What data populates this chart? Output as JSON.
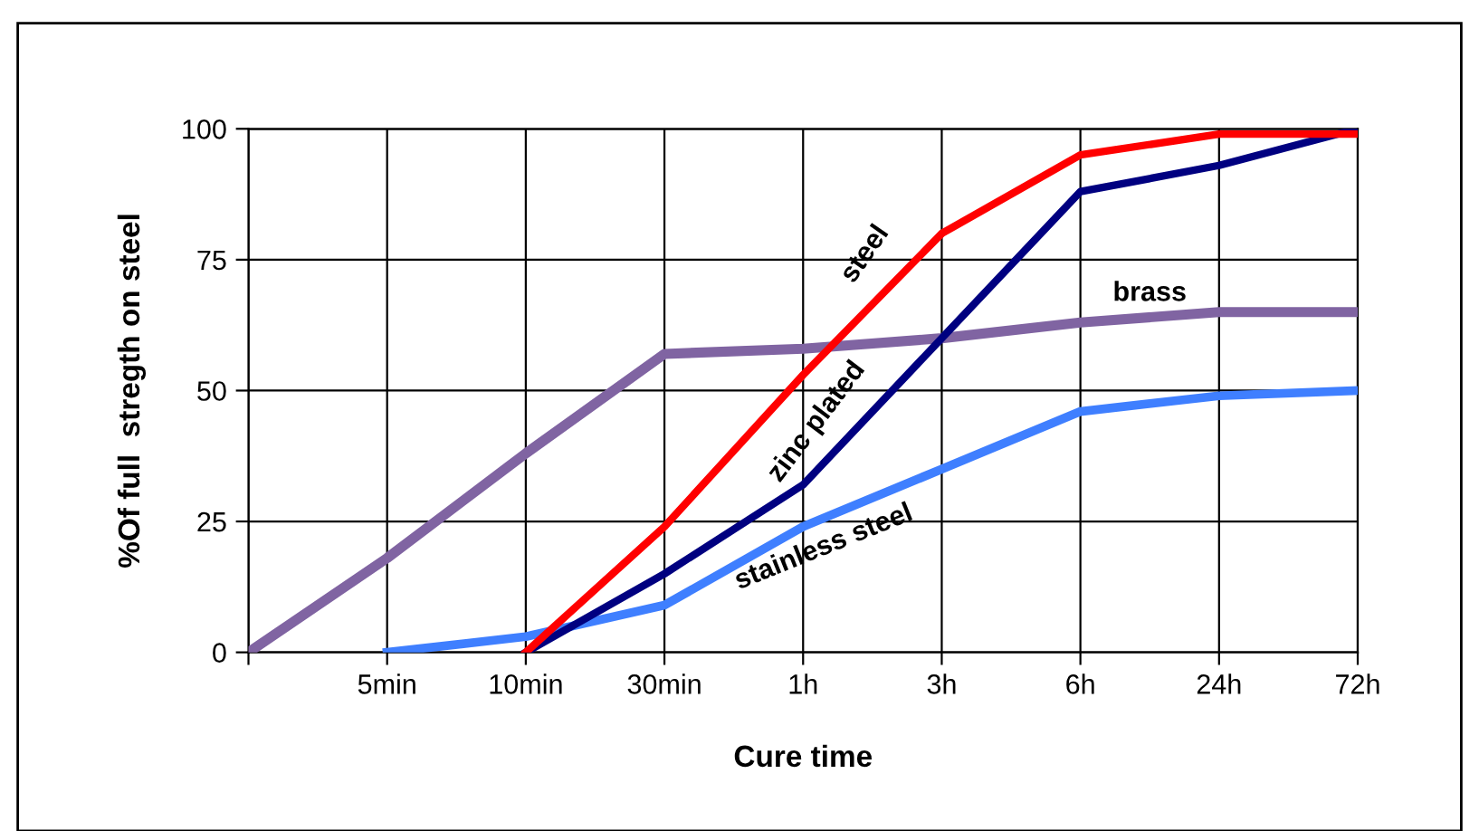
{
  "chart_data": {
    "type": "line",
    "xlabel": "Cure time",
    "ylabel": "%Of full  stregth on steel",
    "categories": [
      null,
      "5min",
      "10min",
      "30min",
      "1h",
      "3h",
      "6h",
      "24h",
      "72h"
    ],
    "ylim": [
      0,
      100
    ],
    "yticks": [
      0,
      25,
      50,
      75,
      100
    ],
    "grid": true,
    "legend": false,
    "marker": "none",
    "line_style": "solid",
    "series": [
      {
        "name": "brass",
        "color": "#8064a2",
        "values": [
          0,
          18,
          38,
          57,
          58,
          60,
          63,
          65,
          65
        ]
      },
      {
        "name": "stainless steel",
        "color": "#3f7fff",
        "values": [
          null,
          0,
          3,
          9,
          24,
          35,
          46,
          49,
          50
        ]
      },
      {
        "name": "zinc plated",
        "color": "#000080",
        "values": [
          null,
          null,
          0,
          15,
          32,
          60,
          88,
          93,
          100
        ]
      },
      {
        "name": "steel",
        "color": "#ff0000",
        "values": [
          null,
          null,
          0,
          24,
          53,
          80,
          95,
          99,
          99
        ]
      }
    ]
  }
}
